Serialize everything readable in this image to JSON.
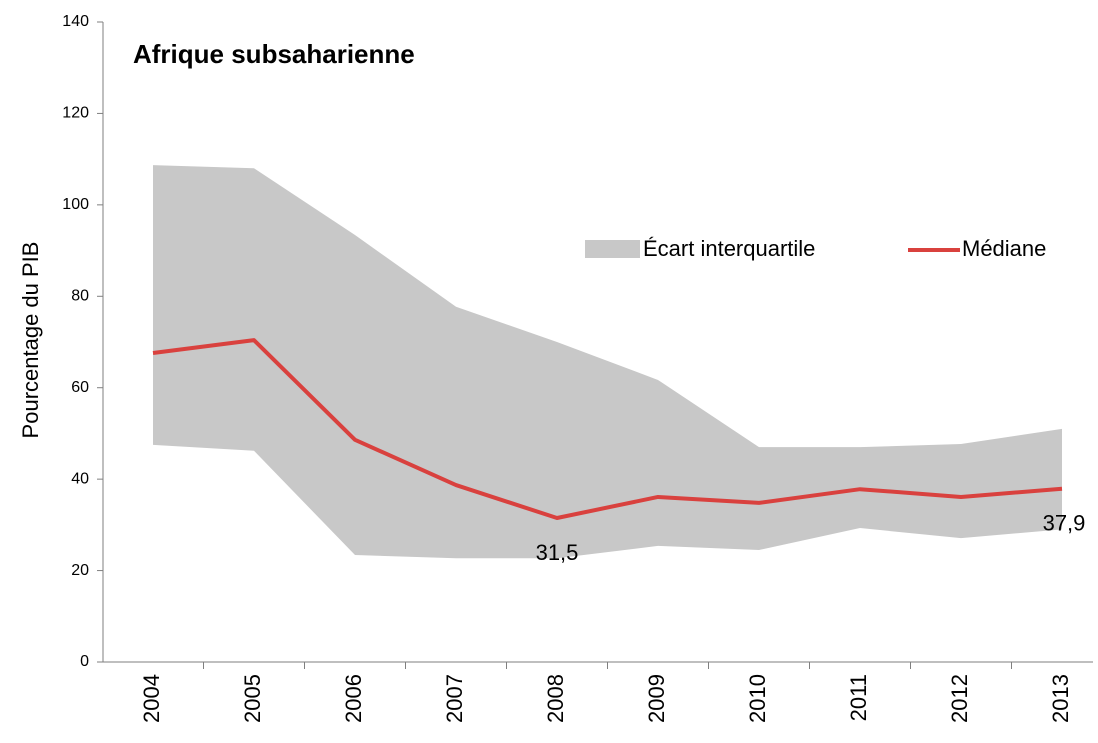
{
  "chart_data": {
    "type": "line",
    "title": "Afrique subsaharienne",
    "y_label": "Pourcentage du PIB",
    "categories": [
      "2004",
      "2005",
      "2006",
      "2007",
      "2008",
      "2009",
      "2010",
      "2011",
      "2012",
      "2013"
    ],
    "series": [
      {
        "name": "Écart interquartile",
        "type": "band",
        "color": "#c8c8c8",
        "lower": [
          47.5,
          46.2,
          23.4,
          22.7,
          22.7,
          25.4,
          24.5,
          29.3,
          27.1,
          29.0
        ],
        "upper": [
          108.7,
          108.0,
          93.4,
          77.7,
          70.0,
          61.7,
          47.0,
          47.0,
          47.7,
          51.0
        ]
      },
      {
        "name": "Médiane",
        "type": "line",
        "color": "#d9413e",
        "values": [
          67.6,
          70.4,
          48.6,
          38.7,
          31.5,
          36.1,
          34.8,
          37.8,
          36.1,
          37.9
        ],
        "value_labels": [
          null,
          null,
          null,
          null,
          "31,5",
          null,
          null,
          null,
          null,
          "37,9"
        ]
      }
    ],
    "ylim": [
      0,
      140
    ],
    "yticks": [
      0,
      20,
      40,
      60,
      80,
      100,
      120,
      140
    ]
  }
}
